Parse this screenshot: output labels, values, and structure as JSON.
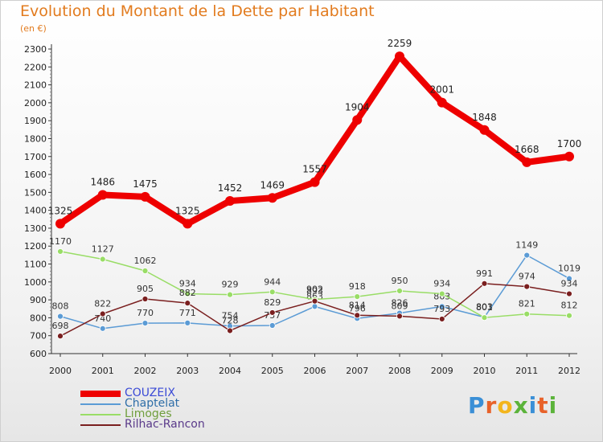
{
  "title": "Evolution du Montant de la Dette par Habitant",
  "unit": "(en €)",
  "logo": {
    "text": "Proxiti",
    "letters": [
      "P",
      "r",
      "o",
      "x",
      "i",
      "t",
      "i"
    ],
    "colors": [
      "#3a8fd6",
      "#e8622a",
      "#f3b51d",
      "#5bb33a",
      "#3a8fd6",
      "#e8622a",
      "#5bb33a"
    ]
  },
  "chart_data": {
    "type": "line",
    "categories": [
      "2000",
      "2001",
      "2002",
      "2003",
      "2004",
      "2005",
      "2006",
      "2007",
      "2008",
      "2009",
      "2010",
      "2011",
      "2012"
    ],
    "y_ticks": [
      "600",
      "700",
      "800",
      "900",
      "1000",
      "1100",
      "1200",
      "1300",
      "1400",
      "1500",
      "1600",
      "1700",
      "1800",
      "1900",
      "2000",
      "2100",
      "2200",
      "2300"
    ],
    "ylim": [
      600,
      2300
    ],
    "grid": false,
    "legend_position": "bottom-left",
    "series": [
      {
        "name": "COUZEIX",
        "color": "#ee0000",
        "values": [
          1325,
          1486,
          1475,
          1325,
          1452,
          1469,
          1557,
          1904,
          2259,
          2001,
          1848,
          1668,
          1700
        ],
        "labels": [
          "1325",
          "1486",
          "1475",
          "1325",
          "1452",
          "1469",
          "1557",
          "1904",
          "2259",
          "2001",
          "1848",
          "1668",
          "1700"
        ]
      },
      {
        "name": "Chaptelat",
        "color": "#5b9bd5",
        "values": [
          808,
          740,
          770,
          771,
          754,
          757,
          863,
          796,
          826,
          863,
          803,
          1149,
          1019
        ],
        "labels": [
          "808",
          "740",
          "770",
          "771",
          "754",
          "757",
          "863",
          "796",
          "826",
          "863",
          "803",
          "1149",
          "1019"
        ]
      },
      {
        "name": "Limoges",
        "color": "#99dd66",
        "values": [
          1170,
          1127,
          1062,
          934,
          929,
          944,
          902,
          918,
          950,
          934,
          801,
          821,
          812
        ],
        "labels": [
          "1170",
          "1127",
          "1062",
          "934",
          "929",
          "944",
          "902",
          "918",
          "950",
          "934",
          "801",
          "821",
          "812"
        ]
      },
      {
        "name": "Rilhac-Rancon",
        "color": "#7a1f1f",
        "values": [
          698,
          822,
          905,
          882,
          728,
          829,
          893,
          814,
          809,
          793,
          991,
          974,
          934
        ],
        "labels": [
          "698",
          "822",
          "905",
          "882",
          "728",
          "829",
          "893",
          "814",
          "809",
          "793",
          "991",
          "974",
          "934"
        ]
      }
    ]
  }
}
